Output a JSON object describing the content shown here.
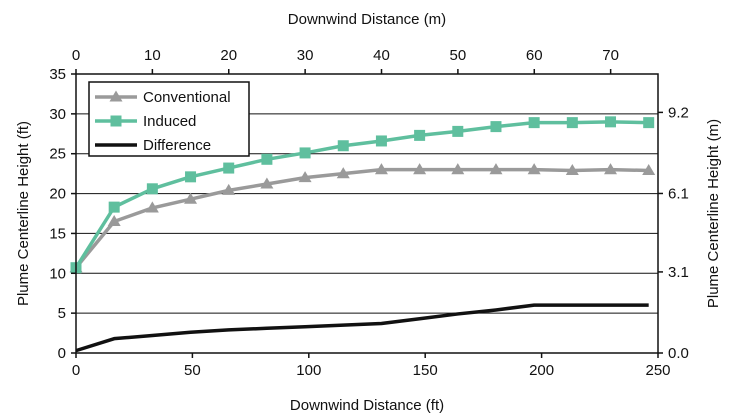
{
  "chart_data": {
    "type": "line",
    "title": "",
    "xlabel": "Downwind Distance (ft)",
    "x2label": "Downwind Distance (m)",
    "ylabel": "Plume Centerline Height (ft)",
    "y2label": "Plume Centerline Height (m)",
    "xlim": [
      0,
      250
    ],
    "ylim": [
      0,
      35
    ],
    "x_ticks": [
      0,
      50,
      100,
      150,
      200,
      250
    ],
    "y_ticks": [
      0,
      5,
      10,
      15,
      20,
      25,
      30,
      35
    ],
    "x2_ticks": [
      0,
      10,
      20,
      30,
      40,
      50,
      60,
      70
    ],
    "y2_ticks": [
      0.0,
      3.1,
      6.1,
      9.2
    ],
    "y2_tick_labels": [
      "0.0",
      "3.1",
      "6.1",
      "9.2"
    ],
    "grid": true,
    "legend_position": "top-left",
    "series": [
      {
        "name": "Conventional",
        "color": "#9a9a9a",
        "marker": "triangle",
        "x": [
          0,
          16.4,
          32.8,
          49.2,
          65.6,
          82,
          98.4,
          114.8,
          131.2,
          147.6,
          164,
          180.4,
          196.8,
          213.2,
          229.6,
          246
        ],
        "y": [
          10.7,
          16.5,
          18.2,
          19.3,
          20.4,
          21.2,
          22,
          22.5,
          23,
          23,
          23,
          23,
          23,
          22.9,
          23,
          22.9
        ]
      },
      {
        "name": "Induced",
        "color": "#5fbf9e",
        "marker": "square",
        "x": [
          0,
          16.4,
          32.8,
          49.2,
          65.6,
          82,
          98.4,
          114.8,
          131.2,
          147.6,
          164,
          180.4,
          196.8,
          213.2,
          229.6,
          246
        ],
        "y": [
          10.7,
          18.3,
          20.6,
          22.1,
          23.2,
          24.3,
          25.1,
          26,
          26.6,
          27.3,
          27.8,
          28.4,
          28.9,
          28.9,
          29,
          28.9
        ]
      },
      {
        "name": "Difference",
        "color": "#111111",
        "marker": "none",
        "x": [
          0,
          16.4,
          32.8,
          49.2,
          65.6,
          82,
          98.4,
          114.8,
          131.2,
          147.6,
          164,
          180.4,
          196.8,
          213.2,
          229.6,
          246
        ],
        "y": [
          0.3,
          1.8,
          2.2,
          2.6,
          2.9,
          3.1,
          3.3,
          3.5,
          3.7,
          4.3,
          4.9,
          5.4,
          6,
          6,
          6,
          6
        ]
      }
    ]
  }
}
